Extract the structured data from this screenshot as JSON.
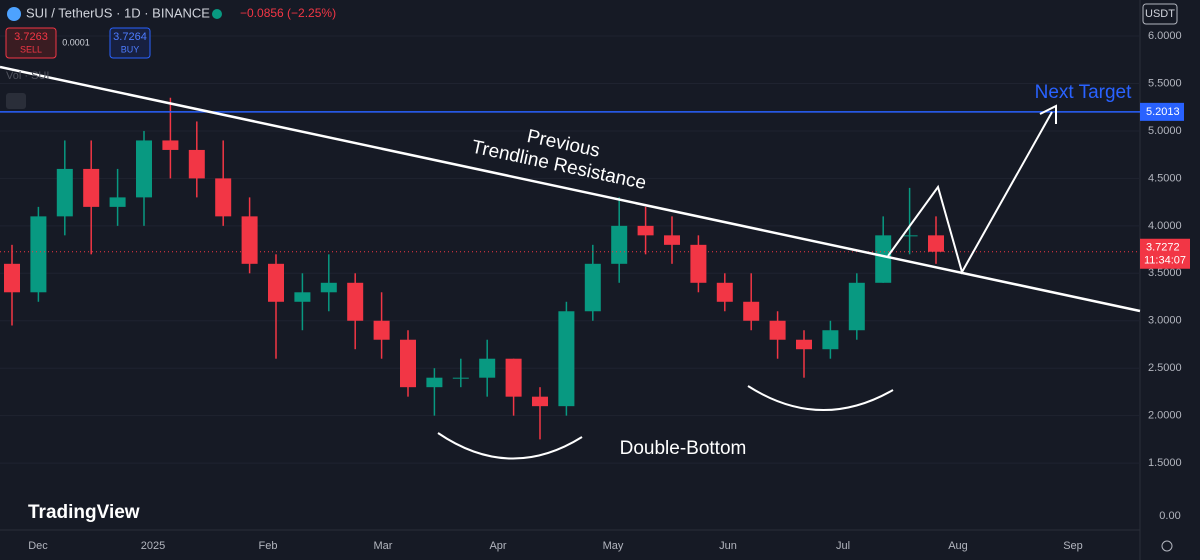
{
  "chart_data": {
    "type": "candlestick",
    "title": "SUI / TetherUS · 1D · BINANCE",
    "change": "−0.0856 (−2.25%)",
    "sell_price": "3.7263",
    "sell_label": "SELL",
    "spread": "0.0001",
    "buy_price": "3.7264",
    "buy_label": "BUY",
    "volume_label": "Vol · SUI",
    "currency": "USDT",
    "brand": "TradingView",
    "annotations": {
      "target": "Next Target",
      "trend_top": "Previous",
      "trend_bottom": "Trendline Resistance",
      "pattern": "Double-Bottom"
    },
    "months": [
      "Dec",
      "2025",
      "Feb",
      "Mar",
      "Apr",
      "May",
      "Jun",
      "Jul",
      "Aug",
      "Sep"
    ],
    "open": [
      3.6,
      3.3,
      4.1,
      4.6,
      4.2,
      4.3,
      4.9,
      4.8,
      4.5,
      4.1,
      3.6,
      3.2,
      3.3,
      3.4,
      3.0,
      2.8,
      2.3,
      2.4,
      2.4,
      2.6,
      2.2,
      2.1,
      3.1,
      3.6,
      4.0,
      3.9,
      3.8,
      3.4,
      3.2,
      3.0,
      2.8,
      2.7,
      2.9,
      3.4,
      3.9,
      3.9
    ],
    "high": [
      3.8,
      4.2,
      4.9,
      4.9,
      4.6,
      5.0,
      5.35,
      5.1,
      4.9,
      4.3,
      3.7,
      3.5,
      3.7,
      3.5,
      3.3,
      2.9,
      2.5,
      2.6,
      2.8,
      2.6,
      2.3,
      3.2,
      3.8,
      4.3,
      4.2,
      4.1,
      3.9,
      3.5,
      3.5,
      3.1,
      2.9,
      3.0,
      3.5,
      4.1,
      4.4,
      4.1
    ],
    "low": [
      2.95,
      3.2,
      3.9,
      3.7,
      4.0,
      4.0,
      4.5,
      4.3,
      4.0,
      3.5,
      2.6,
      2.9,
      3.1,
      2.7,
      2.6,
      2.2,
      2.0,
      2.3,
      2.2,
      2.0,
      1.75,
      2.0,
      3.0,
      3.4,
      3.7,
      3.6,
      3.3,
      3.1,
      2.9,
      2.6,
      2.4,
      2.6,
      2.8,
      3.4,
      3.7,
      3.6
    ],
    "close": [
      3.3,
      4.1,
      4.6,
      4.2,
      4.3,
      4.9,
      4.8,
      4.5,
      4.1,
      3.6,
      3.2,
      3.3,
      3.4,
      3.0,
      2.8,
      2.3,
      2.4,
      2.4,
      2.6,
      2.2,
      2.1,
      3.1,
      3.6,
      4.0,
      3.9,
      3.8,
      3.4,
      3.2,
      3.0,
      2.8,
      2.7,
      2.9,
      3.4,
      3.9,
      3.9,
      3.7272
    ],
    "up_color": "#089981",
    "down_color": "#f23645",
    "last_price": {
      "value": 3.7272,
      "label": "3.7272"
    },
    "countdown": "11:34:07",
    "target_level": {
      "value": 5.2013,
      "label": "5.2013"
    },
    "ylim": [
      0.795,
      6.38
    ],
    "yticks": [
      {
        "value": 1.5,
        "label": "1.5000"
      },
      {
        "value": 2,
        "label": "2.0000"
      },
      {
        "value": 2.5,
        "label": "2.5000"
      },
      {
        "value": 3,
        "label": "3.0000"
      },
      {
        "value": 3.5,
        "label": "3.5000"
      },
      {
        "value": 4,
        "label": "4.0000"
      },
      {
        "value": 4.5,
        "label": "4.5000"
      },
      {
        "value": 5,
        "label": "5.0000"
      },
      {
        "value": 5.5,
        "label": "5.5000"
      },
      {
        "value": 6,
        "label": "6.0000"
      }
    ],
    "volume_tick": "0.00"
  }
}
